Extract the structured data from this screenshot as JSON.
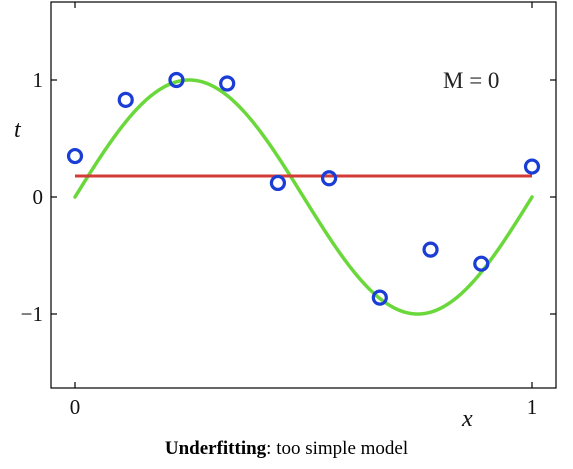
{
  "chart_data": {
    "type": "line",
    "xlabel": "x",
    "ylabel": "t",
    "xlim": [
      0,
      1
    ],
    "ylim": [
      -1.6,
      1.6
    ],
    "xticks": [
      0,
      1
    ],
    "xtick_labels": [
      "0",
      "1"
    ],
    "yticks": [
      -1,
      0,
      1
    ],
    "ytick_labels": [
      "−1",
      "0",
      "1"
    ],
    "annotation": "M = 0",
    "grid": false,
    "series": [
      {
        "kind": "curve",
        "style": "sin(2πx)",
        "color": "#6ad83a",
        "x": [
          0,
          0.05,
          0.1,
          0.15,
          0.2,
          0.25,
          0.3,
          0.35,
          0.4,
          0.45,
          0.5,
          0.55,
          0.6,
          0.65,
          0.7,
          0.75,
          0.8,
          0.85,
          0.9,
          0.95,
          1.0
        ],
        "y": [
          0,
          0.309,
          0.588,
          0.809,
          0.951,
          1.0,
          0.951,
          0.809,
          0.588,
          0.309,
          0,
          -0.309,
          -0.588,
          -0.809,
          -0.951,
          -1.0,
          -0.951,
          -0.809,
          -0.588,
          -0.309,
          0
        ]
      },
      {
        "kind": "fit",
        "color": "#d43a36",
        "x": [
          0,
          1
        ],
        "y": [
          0.18,
          0.18
        ]
      },
      {
        "kind": "points",
        "color": "#1a3dd6",
        "x": [
          0.0,
          0.111,
          0.222,
          0.333,
          0.444,
          0.556,
          0.667,
          0.778,
          0.889,
          1.0
        ],
        "y": [
          0.35,
          0.83,
          1.0,
          0.97,
          0.12,
          0.16,
          -0.86,
          -0.45,
          -0.57,
          0.26
        ]
      }
    ]
  },
  "caption": {
    "bold": "Underfitting",
    "rest": ": too simple model"
  }
}
